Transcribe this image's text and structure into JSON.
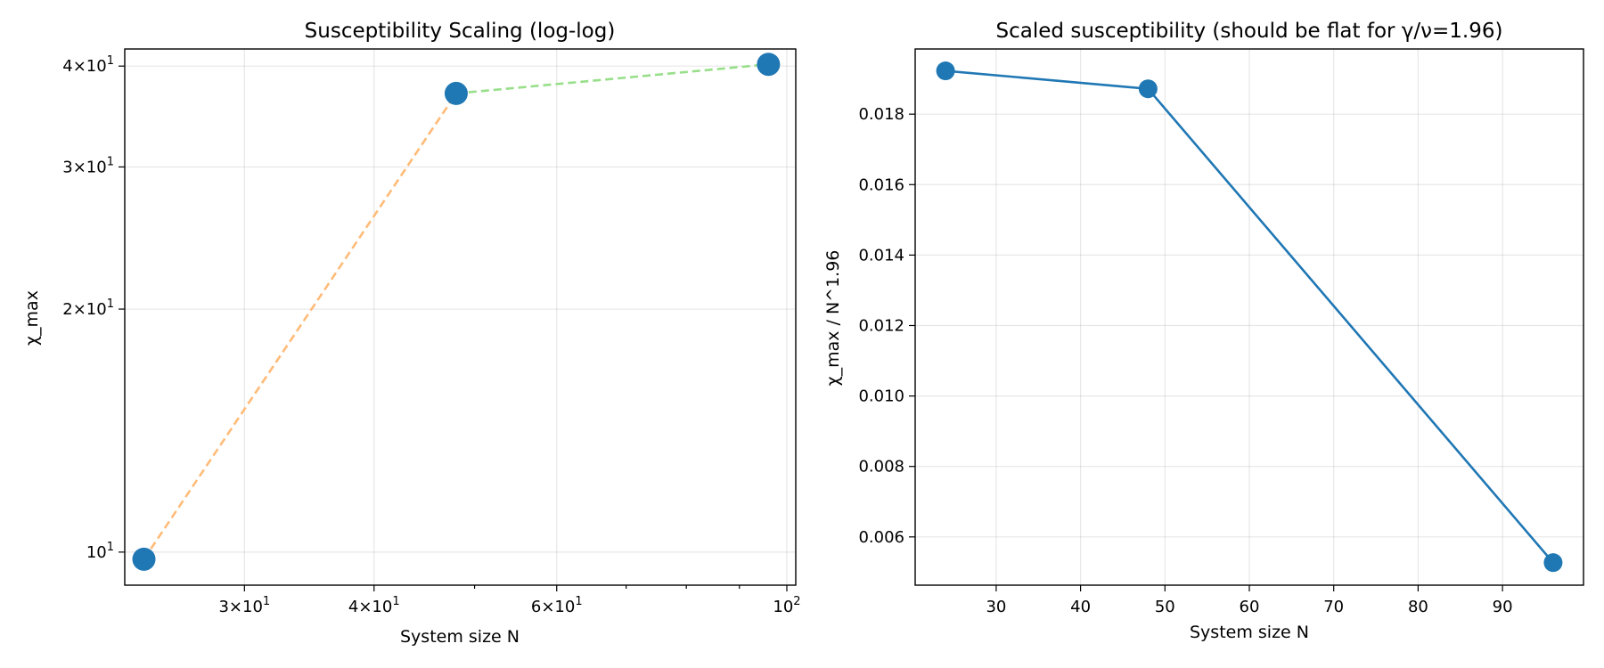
{
  "chart_data": [
    {
      "type": "line",
      "title": "Susceptibility Scaling (log-log)",
      "xlabel": "System size N",
      "ylabel": "χ_max",
      "xscale": "log",
      "yscale": "log",
      "xlim": [
        23,
        102
      ],
      "ylim": [
        9.1,
        42
      ],
      "x_ticks": [
        {
          "value": 30,
          "base": "3×10",
          "exp": "1"
        },
        {
          "value": 40,
          "base": "4×10",
          "exp": "1"
        },
        {
          "value": 60,
          "base": "6×10",
          "exp": "1"
        },
        {
          "value": 100,
          "base": "10",
          "exp": "2"
        }
      ],
      "y_ticks": [
        {
          "value": 10,
          "base": "10",
          "exp": "1"
        },
        {
          "value": 20,
          "base": "2×10",
          "exp": "1"
        },
        {
          "value": 30,
          "base": "3×10",
          "exp": "1"
        },
        {
          "value": 40,
          "base": "4×10",
          "exp": "1"
        }
      ],
      "grid": true,
      "points": {
        "x": [
          24,
          48,
          96
        ],
        "y": [
          9.8,
          37.0,
          40.2
        ],
        "color": "#1f77b4"
      },
      "segments": [
        {
          "x": [
            24,
            48
          ],
          "y": [
            9.8,
            37.0
          ],
          "color": "#ffbb78",
          "style": "dashed"
        },
        {
          "x": [
            48,
            96
          ],
          "y": [
            37.0,
            40.2
          ],
          "color": "#98df8a",
          "style": "dashed"
        }
      ]
    },
    {
      "type": "line",
      "title": "Scaled susceptibility (should be flat for γ/ν=1.96)",
      "xlabel": "System size N",
      "ylabel": "χ_max / N^1.96",
      "xscale": "linear",
      "yscale": "linear",
      "xlim": [
        20.4,
        99.6
      ],
      "ylim": [
        0.00463,
        0.01985
      ],
      "x_ticks": [
        30,
        40,
        50,
        60,
        70,
        80,
        90
      ],
      "y_ticks": [
        0.006,
        0.008,
        0.01,
        0.012,
        0.014,
        0.016,
        0.018
      ],
      "y_tick_labels": [
        "0.006",
        "0.008",
        "0.010",
        "0.012",
        "0.014",
        "0.016",
        "0.018"
      ],
      "grid": true,
      "series": [
        {
          "x": [
            24,
            48,
            96
          ],
          "y": [
            0.01923,
            0.01872,
            0.00527
          ],
          "color": "#1f77b4",
          "style": "solid"
        }
      ]
    }
  ]
}
